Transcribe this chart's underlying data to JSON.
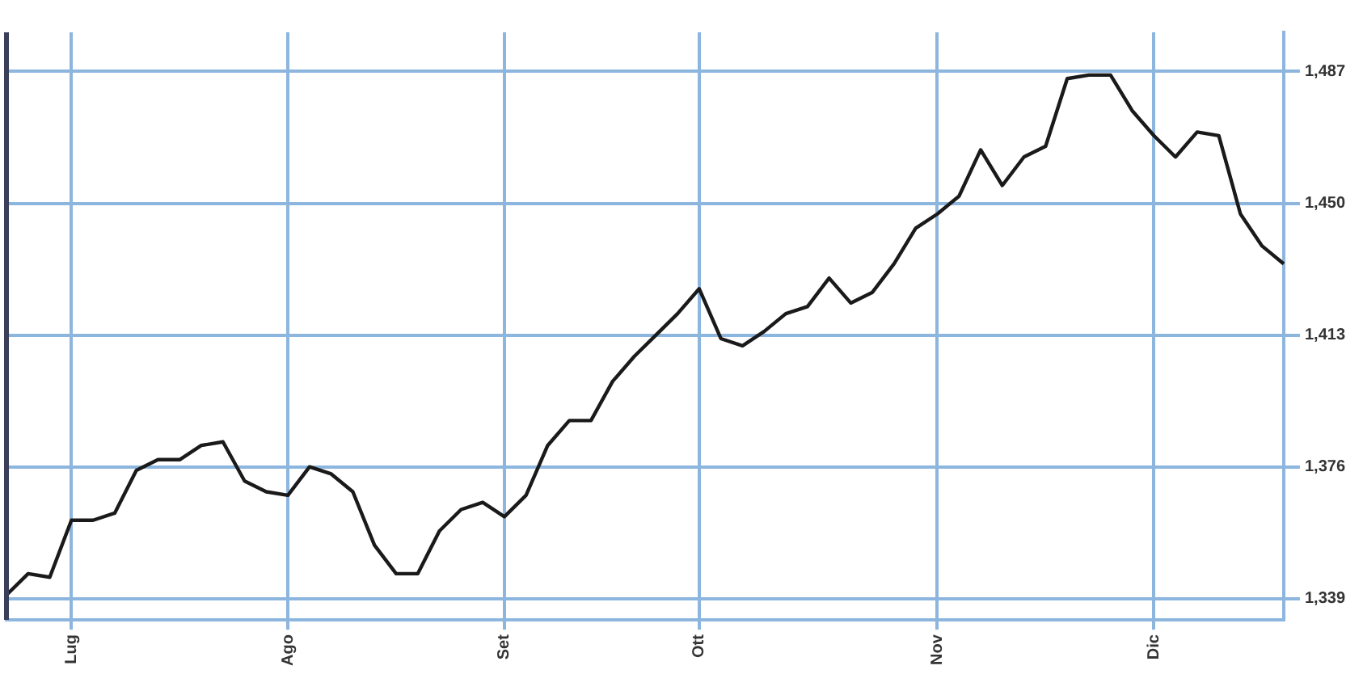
{
  "chart_data": {
    "type": "line",
    "grid": true,
    "legend": false,
    "marker": "none",
    "line_style": "solid",
    "categories": [
      null,
      null,
      null,
      "Lug",
      null,
      null,
      null,
      null,
      null,
      null,
      null,
      null,
      null,
      "Ago",
      null,
      null,
      null,
      null,
      null,
      null,
      null,
      null,
      null,
      "Set",
      null,
      null,
      null,
      null,
      null,
      null,
      null,
      null,
      "Ott",
      null,
      null,
      null,
      null,
      null,
      null,
      null,
      null,
      null,
      null,
      "Nov",
      null,
      null,
      null,
      null,
      null,
      null,
      null,
      null,
      null,
      "Dic",
      null,
      null,
      null,
      null,
      null,
      null
    ],
    "ylim": [
      1333,
      1498
    ],
    "yticks": [
      {
        "value": 1339,
        "label": "1,339"
      },
      {
        "value": 1376,
        "label": "1,376"
      },
      {
        "value": 1413,
        "label": "1,413"
      },
      {
        "value": 1450,
        "label": "1,450"
      },
      {
        "value": 1487,
        "label": "1,487"
      }
    ],
    "series": [
      {
        "color": "#1a1a1a",
        "values": [
          1340,
          1346,
          1345,
          1361,
          1361,
          1363,
          1375,
          1378,
          1378,
          1382,
          1383,
          1372,
          1369,
          1368,
          1376,
          1374,
          1369,
          1354,
          1346,
          1346,
          1358,
          1364,
          1366,
          1362,
          1368,
          1382,
          1389,
          1389,
          1400,
          1407,
          1413,
          1419,
          1426,
          1412,
          1410,
          1414,
          1419,
          1421,
          1429,
          1422,
          1425,
          1433,
          1443,
          1447,
          1452,
          1465,
          1455,
          1463,
          1466,
          1485,
          1486,
          1486,
          1476,
          1469,
          1463,
          1470,
          1469,
          1447,
          1438,
          1433
        ]
      }
    ]
  }
}
